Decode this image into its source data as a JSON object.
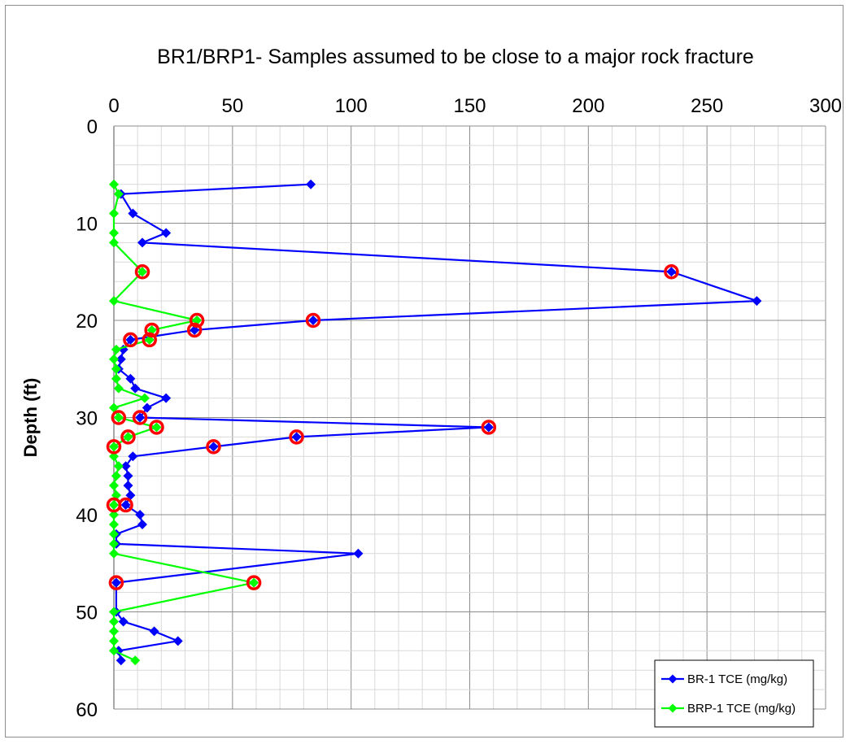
{
  "chart_data": {
    "type": "line",
    "title": "BR1/BRP1- Samples  assumed to be close to a major rock fracture",
    "xlabel": "",
    "ylabel": "Depth (ft)",
    "x_axis_position": "top",
    "xlim": [
      0,
      300
    ],
    "ylim": [
      0,
      60
    ],
    "y_inverted": true,
    "xticks": [
      "0",
      "50",
      "100",
      "150",
      "200",
      "250",
      "300"
    ],
    "yticks": [
      "0",
      "10",
      "20",
      "30",
      "40",
      "50",
      "60"
    ],
    "grid": "major and minor",
    "legend_position": "bottom-right",
    "series": [
      {
        "name": "BR-1 TCE (mg/kg)",
        "color": "#0000ff",
        "marker": "diamond",
        "points": [
          [
            83,
            6
          ],
          [
            3,
            7
          ],
          [
            8,
            9
          ],
          [
            22,
            11
          ],
          [
            12,
            12
          ],
          [
            235,
            15
          ],
          [
            271,
            18
          ],
          [
            84,
            20
          ],
          [
            34,
            21
          ],
          [
            7,
            22
          ],
          [
            4,
            23
          ],
          [
            3,
            24
          ],
          [
            2,
            25
          ],
          [
            7,
            26
          ],
          [
            9,
            27
          ],
          [
            22,
            28
          ],
          [
            14,
            29
          ],
          [
            11,
            30
          ],
          [
            158,
            31
          ],
          [
            77,
            32
          ],
          [
            42,
            33
          ],
          [
            8,
            34
          ],
          [
            5,
            35
          ],
          [
            6,
            36
          ],
          [
            6,
            37
          ],
          [
            7,
            38
          ],
          [
            5,
            39
          ],
          [
            11,
            40
          ],
          [
            12,
            41
          ],
          [
            1,
            42
          ],
          [
            1,
            43
          ],
          [
            103,
            44
          ],
          [
            1,
            47
          ],
          [
            1,
            50
          ],
          [
            4,
            51
          ],
          [
            17,
            52
          ],
          [
            27,
            53
          ],
          [
            2,
            54
          ],
          [
            3,
            55
          ]
        ]
      },
      {
        "name": "BRP-1 TCE (mg/kg)",
        "color": "#00ff00",
        "marker": "diamond",
        "points": [
          [
            0,
            6
          ],
          [
            2,
            7
          ],
          [
            0,
            9
          ],
          [
            0,
            11
          ],
          [
            0,
            12
          ],
          [
            12,
            15
          ],
          [
            0,
            18
          ],
          [
            35,
            20
          ],
          [
            16,
            21
          ],
          [
            15,
            22
          ],
          [
            1,
            23
          ],
          [
            0,
            24
          ],
          [
            1,
            25
          ],
          [
            1,
            26
          ],
          [
            2,
            27
          ],
          [
            13,
            28
          ],
          [
            0,
            29
          ],
          [
            2,
            30
          ],
          [
            18,
            31
          ],
          [
            6,
            32
          ],
          [
            0,
            33
          ],
          [
            0,
            34
          ],
          [
            2,
            35
          ],
          [
            1,
            36
          ],
          [
            0,
            37
          ],
          [
            1,
            38
          ],
          [
            0,
            39
          ],
          [
            0,
            40
          ],
          [
            0,
            41
          ],
          [
            0,
            42
          ],
          [
            0,
            43
          ],
          [
            0,
            44
          ],
          [
            59,
            47
          ],
          [
            0,
            50
          ],
          [
            0,
            51
          ],
          [
            0,
            52
          ],
          [
            0,
            53
          ],
          [
            0,
            54
          ],
          [
            9,
            55
          ]
        ]
      }
    ],
    "highlighted_points": {
      "color": "#ff0000",
      "marker": "ring",
      "points": [
        [
          12,
          15
        ],
        [
          235,
          15
        ],
        [
          35,
          20
        ],
        [
          84,
          20
        ],
        [
          16,
          21
        ],
        [
          34,
          21
        ],
        [
          7,
          22
        ],
        [
          15,
          22
        ],
        [
          2,
          30
        ],
        [
          11,
          30
        ],
        [
          18,
          31
        ],
        [
          158,
          31
        ],
        [
          6,
          32
        ],
        [
          77,
          32
        ],
        [
          0,
          33
        ],
        [
          42,
          33
        ],
        [
          0,
          39
        ],
        [
          5,
          39
        ],
        [
          1,
          47
        ],
        [
          59,
          47
        ]
      ]
    }
  }
}
